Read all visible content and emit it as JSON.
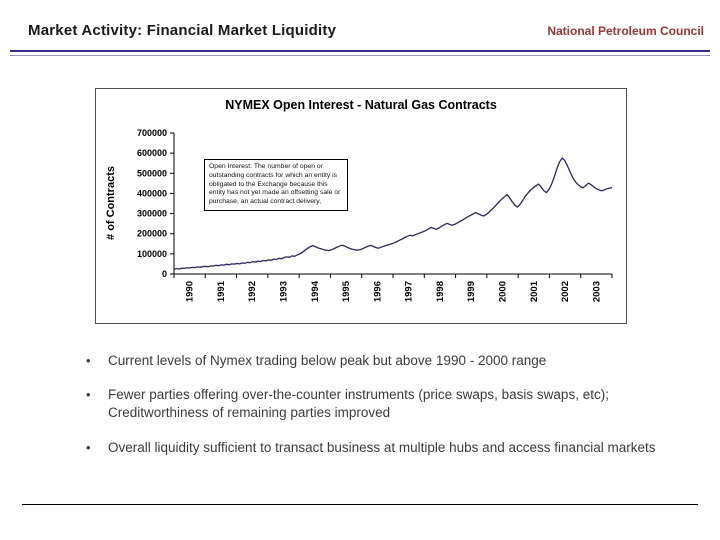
{
  "header": {
    "title": "Market Activity: Financial Market Liquidity",
    "org": "National Petroleum Council"
  },
  "chart_data": {
    "type": "line",
    "title": "NYMEX Open Interest - Natural Gas Contracts",
    "xlabel": "",
    "ylabel": "# of Contracts",
    "ylim": [
      0,
      700000
    ],
    "y_ticks": [
      0,
      100000,
      200000,
      300000,
      400000,
      500000,
      600000,
      700000
    ],
    "grid": false,
    "legend": "none",
    "x_tick_labels": [
      "1990",
      "1991",
      "1992",
      "1993",
      "1994",
      "1995",
      "1996",
      "1997",
      "1998",
      "1999",
      "2000",
      "2001",
      "2002",
      "2003"
    ],
    "x_start": "1990-01",
    "x_freq": "monthly",
    "annotation": "Open Interest: The number of open or outstanding contracts for which an entity is obligated to the Exchange because this entity has not yet made an offsetting sale or purchase, an actual contract delivery,",
    "series": [
      {
        "name": "Open Interest",
        "values": [
          24000,
          27000,
          25000,
          29000,
          28000,
          31000,
          30000,
          33000,
          32000,
          35000,
          34000,
          36000,
          38000,
          36000,
          40000,
          39000,
          43000,
          41000,
          45000,
          44000,
          48000,
          46000,
          50000,
          49000,
          52000,
          50000,
          55000,
          53000,
          58000,
          56000,
          61000,
          59000,
          64000,
          62000,
          67000,
          65000,
          70000,
          68000,
          74000,
          72000,
          78000,
          76000,
          82000,
          85000,
          83000,
          90000,
          88000,
          95000,
          100000,
          108000,
          118000,
          128000,
          136000,
          141000,
          135000,
          129000,
          125000,
          121000,
          118000,
          116000,
          120000,
          126000,
          132000,
          138000,
          143000,
          139000,
          133000,
          127000,
          123000,
          120000,
          118000,
          121000,
          126000,
          132000,
          138000,
          142000,
          137000,
          131000,
          128000,
          133000,
          138000,
          142000,
          146000,
          150000,
          155000,
          161000,
          168000,
          174000,
          181000,
          187000,
          192000,
          189000,
          195000,
          200000,
          205000,
          210000,
          216000,
          224000,
          231000,
          227000,
          222000,
          229000,
          237000,
          244000,
          251000,
          247000,
          242000,
          246000,
          253000,
          261000,
          268000,
          276000,
          284000,
          291000,
          298000,
          305000,
          299000,
          293000,
          288000,
          295000,
          306000,
          318000,
          331000,
          345000,
          359000,
          372000,
          384000,
          394000,
          378000,
          358000,
          341000,
          332000,
          347000,
          366000,
          386000,
          403000,
          417000,
          428000,
          438000,
          447000,
          431000,
          414000,
          404000,
          421000,
          448000,
          482000,
          523000,
          556000,
          576000,
          563000,
          537000,
          508000,
          479000,
          458000,
          444000,
          434000,
          428000,
          439000,
          451000,
          444000,
          433000,
          424000,
          418000,
          413000,
          417000,
          423000,
          426000,
          429000
        ]
      }
    ]
  },
  "bullets": [
    "Current levels of Nymex trading below peak but above 1990 - 2000 range",
    "Fewer parties offering over-the-counter instruments (price swaps, basis swaps, etc);  Creditworthiness of remaining parties improved",
    "Overall liquidity sufficient to transact business at multiple hubs and access financial markets"
  ],
  "colors": {
    "chart_line": "#29295e",
    "accent": "#943634",
    "rule": "#33338f",
    "text": "#3b3b3b"
  }
}
